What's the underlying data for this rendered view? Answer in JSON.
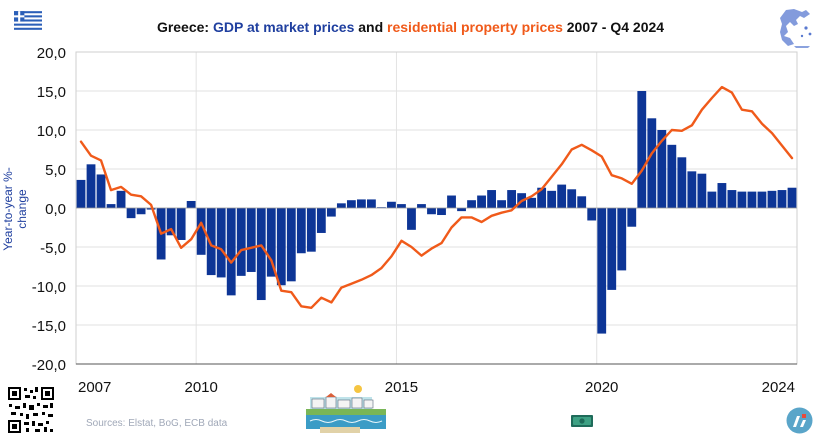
{
  "title": {
    "prefix": "Greece: ",
    "gdp": "GDP at market prices",
    "middle": " and ",
    "residential": "residential property prices",
    "suffix": " 2007 - Q4 2024"
  },
  "source": "Sources: Elstat, BoG, ECB data",
  "colors": {
    "gdp": "#0d3596",
    "property": "#f05a1a",
    "grid": "#e2e2e2",
    "axis": "#555555",
    "text": "#111111",
    "accent_text": "#1f3f9f"
  },
  "icons": [
    "greek-flag-icon",
    "greece-map-icon",
    "qr-code-icon",
    "seaside-town-illustration",
    "banknote-icon",
    "brand-logo-icon"
  ],
  "chart_data": {
    "type": "bar",
    "ylabel": "Year-to-year %-change",
    "ylim": [
      -20,
      20
    ],
    "yticks": [
      "20,0",
      "15,0",
      "10,0",
      "5,0",
      "0,0",
      "-5,0",
      "-10,0",
      "-15,0",
      "-20,0"
    ],
    "ytick_values": [
      20,
      15,
      10,
      5,
      0,
      -5,
      -10,
      -15,
      -20
    ],
    "xtick_labels": [
      "2007",
      "2010",
      "2015",
      "2020",
      "2024"
    ],
    "xtick_index": [
      0,
      12,
      32,
      52,
      68
    ],
    "vertical_gridlines_at_index": [
      11.5,
      31.5,
      51.5
    ],
    "grid": true,
    "quarters": [
      "2007Q1",
      "2007Q2",
      "2007Q3",
      "2007Q4",
      "2008Q1",
      "2008Q2",
      "2008Q3",
      "2008Q4",
      "2009Q1",
      "2009Q2",
      "2009Q3",
      "2009Q4",
      "2010Q1",
      "2010Q2",
      "2010Q3",
      "2010Q4",
      "2011Q1",
      "2011Q2",
      "2011Q3",
      "2011Q4",
      "2012Q1",
      "2012Q2",
      "2012Q3",
      "2012Q4",
      "2013Q1",
      "2013Q2",
      "2013Q3",
      "2013Q4",
      "2014Q1",
      "2014Q2",
      "2014Q3",
      "2014Q4",
      "2015Q1",
      "2015Q2",
      "2015Q3",
      "2015Q4",
      "2016Q1",
      "2016Q2",
      "2016Q3",
      "2016Q4",
      "2017Q1",
      "2017Q2",
      "2017Q3",
      "2017Q4",
      "2018Q1",
      "2018Q2",
      "2018Q3",
      "2018Q4",
      "2019Q1",
      "2019Q2",
      "2019Q3",
      "2019Q4",
      "2020Q1",
      "2020Q2",
      "2020Q3",
      "2020Q4",
      "2021Q1",
      "2021Q2",
      "2021Q3",
      "2021Q4",
      "2022Q1",
      "2022Q2",
      "2022Q3",
      "2022Q4",
      "2023Q1",
      "2023Q2",
      "2023Q3",
      "2023Q4",
      "2024Q1",
      "2024Q2",
      "2024Q3",
      "2024Q4"
    ],
    "series": [
      {
        "name": "GDP at market prices",
        "type": "bar",
        "values": [
          3.6,
          5.6,
          4.3,
          0.5,
          2.2,
          -1.3,
          -0.8,
          -0.2,
          -6.6,
          -3.5,
          -4.1,
          0.9,
          -6.0,
          -8.6,
          -8.9,
          -11.2,
          -8.7,
          -8.2,
          -11.8,
          -8.8,
          -9.9,
          -9.4,
          -5.8,
          -5.6,
          -3.2,
          -1.1,
          0.6,
          1.0,
          1.1,
          1.1,
          0.1,
          0.8,
          0.5,
          -2.8,
          0.5,
          -0.8,
          -0.9,
          1.6,
          -0.4,
          1.0,
          1.6,
          2.3,
          1.0,
          2.3,
          1.9,
          1.3,
          2.6,
          2.2,
          3.0,
          2.4,
          1.5,
          -1.6,
          -16.1,
          -10.5,
          -8.0,
          -2.4,
          15.0,
          11.5,
          10.0,
          8.1,
          6.5,
          4.7,
          4.4,
          2.1,
          3.2,
          2.3,
          2.1,
          2.1,
          2.1,
          2.2,
          2.3,
          2.6
        ]
      },
      {
        "name": "residential property prices",
        "type": "line",
        "values": [
          8.5,
          6.7,
          6.1,
          2.3,
          2.7,
          1.7,
          1.5,
          0.4,
          -3.3,
          -2.7,
          -5.1,
          -4.0,
          -1.9,
          -4.8,
          -5.3,
          -7.0,
          -5.4,
          -5.1,
          -4.8,
          -6.7,
          -10.6,
          -10.8,
          -12.6,
          -12.8,
          -11.5,
          -12.1,
          -10.2,
          -9.7,
          -9.2,
          -8.6,
          -7.7,
          -6.2,
          -4.2,
          -5.0,
          -6.1,
          -5.2,
          -4.5,
          -2.5,
          -1.2,
          -1.2,
          -1.8,
          -1.0,
          -0.6,
          -0.3,
          0.9,
          1.5,
          2.4,
          4.0,
          5.6,
          7.5,
          8.1,
          7.4,
          6.6,
          4.2,
          3.8,
          3.1,
          4.8,
          7.0,
          8.6,
          10.0,
          9.9,
          10.6,
          12.6,
          14.1,
          15.5,
          14.8,
          12.6,
          12.4,
          10.8,
          9.6,
          8.0,
          6.4
        ]
      }
    ]
  }
}
